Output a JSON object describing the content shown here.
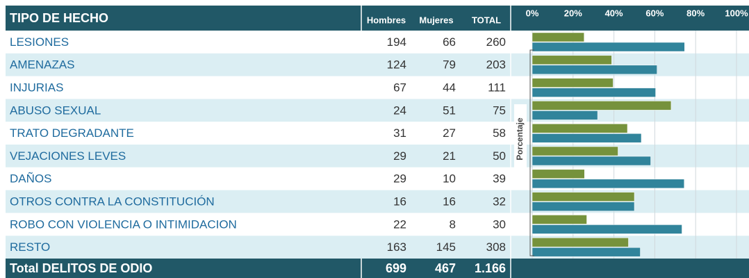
{
  "table": {
    "header": [
      "TIPO DE HECHO",
      "Hombres",
      "Mujeres",
      "TOTAL"
    ],
    "rows": [
      [
        "LESIONES",
        194,
        66,
        260
      ],
      [
        "AMENAZAS",
        124,
        79,
        203
      ],
      [
        "INJURIAS",
        67,
        44,
        111
      ],
      [
        "ABUSO SEXUAL",
        24,
        51,
        75
      ],
      [
        "TRATO DEGRADANTE",
        31,
        27,
        58
      ],
      [
        "VEJACIONES LEVES",
        29,
        21,
        50
      ],
      [
        "DAÑOS",
        29,
        10,
        39
      ],
      [
        "OTROS CONTRA LA CONSTITUCIÓN",
        16,
        16,
        32
      ],
      [
        "ROBO CON VIOLENCIA O INTIMIDACION",
        22,
        8,
        30
      ],
      [
        "RESTO",
        163,
        145,
        308
      ]
    ],
    "total": [
      "Total DELITOS DE ODIO",
      699,
      467,
      "1.166"
    ]
  },
  "chart_data": {
    "type": "bar",
    "orientation": "horizontal",
    "x_label": "Porcentaje",
    "xlim": [
      0,
      100
    ],
    "xticks": [
      {
        "value": 0,
        "label": "0%"
      },
      {
        "value": 20,
        "label": "20%"
      },
      {
        "value": 40,
        "label": "40%"
      },
      {
        "value": 60,
        "label": "60%"
      },
      {
        "value": 80,
        "label": "80%"
      },
      {
        "value": 100,
        "label": "100%"
      }
    ],
    "grid": true,
    "series": [
      {
        "color": "#76923c",
        "values": [
          25.4,
          38.9,
          39.6,
          68.0,
          46.6,
          42.0,
          25.6,
          50.0,
          26.7,
          47.1
        ]
      },
      {
        "color": "#31849b",
        "values": [
          74.6,
          61.1,
          60.4,
          32.0,
          53.4,
          58.0,
          74.4,
          50.0,
          73.3,
          52.9
        ]
      }
    ]
  }
}
